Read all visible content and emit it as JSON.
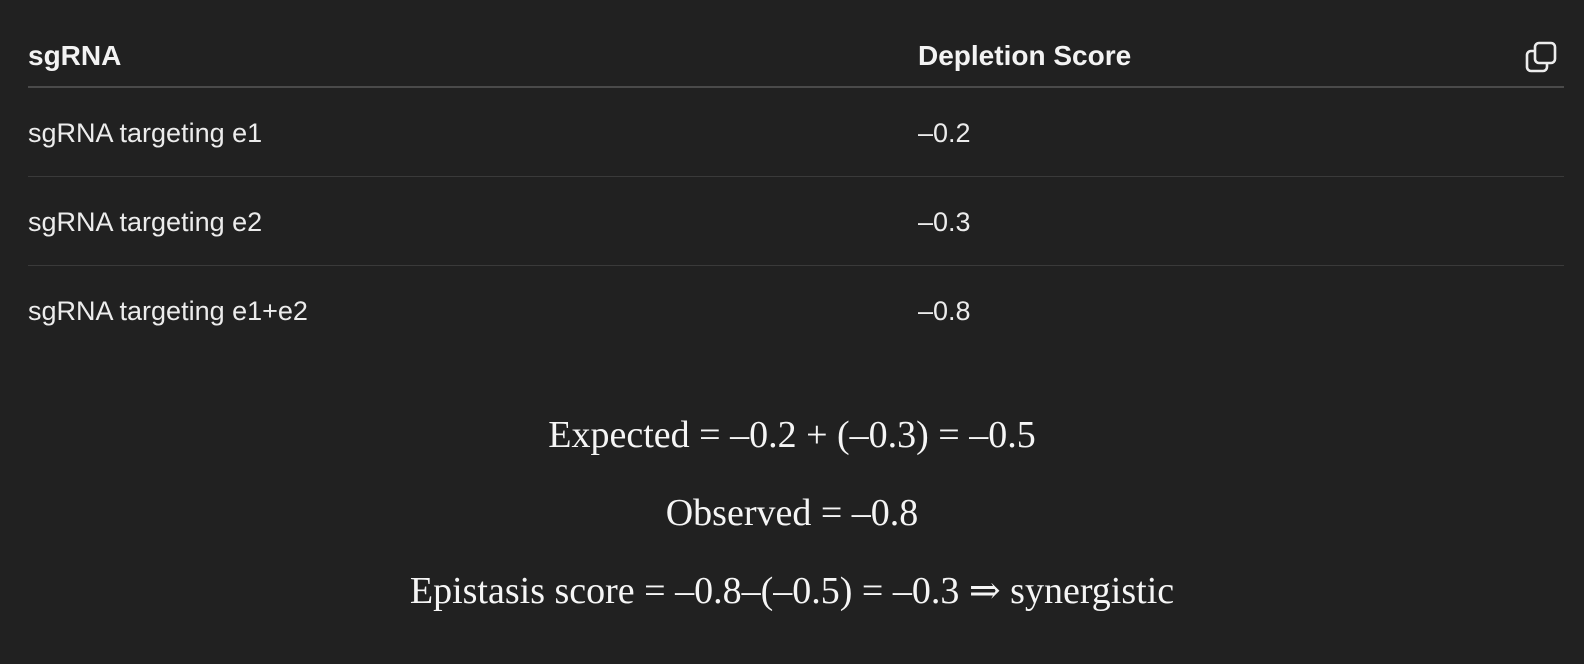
{
  "table": {
    "headers": [
      "sgRNA",
      "Depletion Score"
    ],
    "rows": [
      [
        "sgRNA targeting e1",
        "–0.2"
      ],
      [
        "sgRNA targeting e2",
        "–0.3"
      ],
      [
        "sgRNA targeting e1+e2",
        "–0.8"
      ]
    ],
    "copy_icon": "copy-icon"
  },
  "math": {
    "expected": "Expected = –0.2 + (–0.3) = –0.5",
    "observed": "Observed = –0.8",
    "epistasis": "Epistasis score = –0.8–(–0.5) = –0.3 ⇒ synergistic"
  }
}
